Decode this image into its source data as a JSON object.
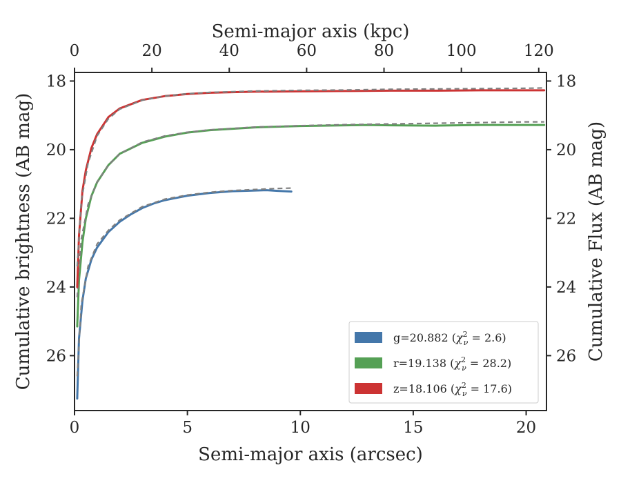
{
  "chart_data": {
    "type": "line",
    "xlabel_bottom": "Semi-major axis (arcsec)",
    "xlabel_top": "Semi-major axis (kpc)",
    "ylabel_left": "Cumulative brightness (AB mag)",
    "ylabel_right": "Cumulative Flux (AB mag)",
    "xlim": [
      0,
      20.9
    ],
    "xlim_top": [
      0,
      122
    ],
    "ylim": [
      27.6,
      17.75
    ],
    "y_inverted": true,
    "x_ticks": [
      0,
      5,
      10,
      15,
      20
    ],
    "x_ticks_top": [
      0,
      20,
      40,
      60,
      80,
      100,
      120
    ],
    "y_ticks": [
      18,
      20,
      22,
      24,
      26
    ],
    "grid": false,
    "legend_position": "lower-right",
    "series": [
      {
        "name": "g=20.882",
        "chi2": "2.6",
        "band": "g",
        "color": "#4477aa",
        "x": [
          0.12,
          0.2,
          0.35,
          0.5,
          0.75,
          1.0,
          1.5,
          2.0,
          2.5,
          3.0,
          3.5,
          4.0,
          5.0,
          6.0,
          7.0,
          8.0,
          8.5,
          9.0,
          9.6
        ],
        "y": [
          27.25,
          25.5,
          24.4,
          23.75,
          23.2,
          22.85,
          22.4,
          22.1,
          21.88,
          21.7,
          21.57,
          21.47,
          21.34,
          21.26,
          21.21,
          21.19,
          21.18,
          21.2,
          21.22
        ],
        "model_x": [
          0.12,
          0.3,
          0.6,
          1.0,
          1.5,
          2.0,
          3.0,
          4.0,
          5.0,
          6.0,
          7.0,
          8.0,
          9.0,
          9.6
        ],
        "model_y": [
          26.6,
          24.5,
          23.4,
          22.75,
          22.35,
          22.05,
          21.66,
          21.44,
          21.32,
          21.24,
          21.19,
          21.16,
          21.13,
          21.12
        ]
      },
      {
        "name": "r=19.138",
        "chi2": "28.2",
        "band": "r",
        "color": "#55a055",
        "x": [
          0.12,
          0.2,
          0.35,
          0.5,
          0.75,
          1.0,
          1.5,
          2.0,
          3.0,
          4.0,
          5.0,
          6.0,
          8.0,
          10.0,
          12.0,
          13.0,
          14.0,
          16.0,
          18.0,
          20.0,
          20.8
        ],
        "y": [
          25.15,
          23.8,
          22.7,
          22.0,
          21.35,
          20.95,
          20.45,
          20.12,
          19.8,
          19.62,
          19.5,
          19.43,
          19.35,
          19.31,
          19.29,
          19.28,
          19.29,
          19.3,
          19.28,
          19.28,
          19.28
        ],
        "model_x": [
          0.12,
          0.3,
          0.6,
          1.0,
          1.5,
          2.0,
          3.0,
          4.0,
          5.0,
          6.0,
          8.0,
          10.0,
          12.0,
          14.0,
          16.0,
          18.0,
          20.0,
          20.8
        ],
        "model_y": [
          24.3,
          22.6,
          21.6,
          20.95,
          20.45,
          20.12,
          19.78,
          19.6,
          19.49,
          19.42,
          19.34,
          19.3,
          19.27,
          19.25,
          19.23,
          19.21,
          19.19,
          19.19
        ]
      },
      {
        "name": "z=18.106",
        "chi2": "17.6",
        "band": "z",
        "color": "#cc3333",
        "x": [
          0.12,
          0.2,
          0.35,
          0.5,
          0.75,
          1.0,
          1.5,
          2.0,
          3.0,
          4.0,
          5.0,
          6.0,
          8.0,
          10.0,
          12.0,
          14.0,
          16.0,
          18.0,
          20.0,
          20.8
        ],
        "y": [
          24.0,
          22.5,
          21.2,
          20.6,
          19.95,
          19.55,
          19.05,
          18.8,
          18.55,
          18.44,
          18.38,
          18.34,
          18.31,
          18.3,
          18.29,
          18.28,
          18.28,
          18.27,
          18.27,
          18.27
        ],
        "model_x": [
          0.12,
          0.3,
          0.6,
          1.0,
          1.5,
          2.0,
          3.0,
          4.0,
          5.0,
          6.0,
          8.0,
          10.0,
          12.0,
          14.0,
          16.0,
          18.0,
          20.0,
          20.8
        ],
        "model_y": [
          23.4,
          21.5,
          20.4,
          19.6,
          19.1,
          18.82,
          18.56,
          18.44,
          18.37,
          18.33,
          18.29,
          18.27,
          18.26,
          18.24,
          18.23,
          18.22,
          18.21,
          18.2
        ]
      }
    ],
    "model_color": "#808080",
    "model_style": "dashed"
  }
}
